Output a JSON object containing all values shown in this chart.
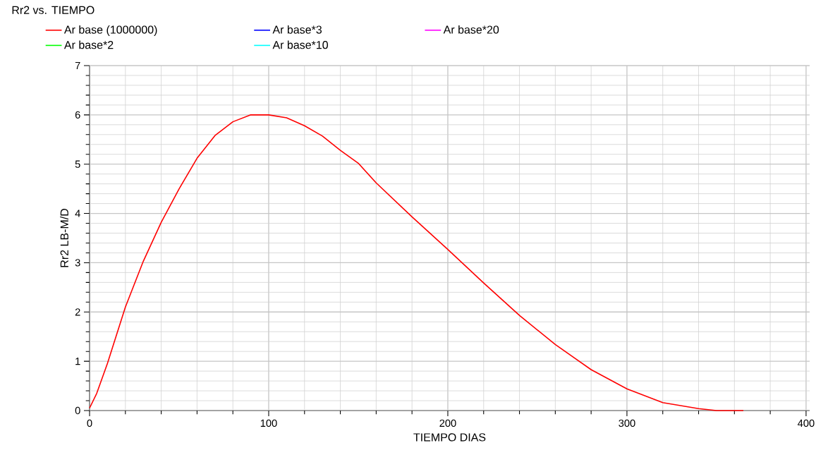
{
  "chart_data": {
    "type": "line",
    "title": "Rr2 vs. TIEMPO",
    "xlabel": "TIEMPO      DIAS",
    "ylabel": "Rr2  LB-M/D",
    "x": [
      0,
      4,
      10,
      20,
      30,
      40,
      50,
      60,
      70,
      80,
      90,
      100,
      110,
      120,
      130,
      140,
      150,
      160,
      180,
      200,
      220,
      240,
      260,
      280,
      300,
      320,
      340,
      350,
      365
    ],
    "series": [
      {
        "name": "Ar base (1000000)",
        "color": "#ff0000",
        "values": [
          0.05,
          0.35,
          0.96,
          2.1,
          3.03,
          3.82,
          4.5,
          5.12,
          5.58,
          5.86,
          6.0,
          6.0,
          5.94,
          5.78,
          5.57,
          5.28,
          5.02,
          4.62,
          3.93,
          3.27,
          2.59,
          1.93,
          1.34,
          0.83,
          0.44,
          0.16,
          0.04,
          0.0,
          0.0
        ]
      },
      {
        "name": "Ar base*2",
        "color": "#00ff00",
        "values": [
          null,
          null,
          null,
          null,
          null,
          null,
          null,
          null,
          null,
          null,
          null,
          null,
          null,
          null,
          null,
          null,
          null,
          null,
          null,
          null,
          null,
          null,
          null,
          null,
          null,
          null,
          null,
          null,
          null
        ]
      },
      {
        "name": "Ar base*3",
        "color": "#0000ff",
        "values": [
          null,
          null,
          null,
          null,
          null,
          null,
          null,
          null,
          null,
          null,
          null,
          null,
          null,
          null,
          null,
          null,
          null,
          null,
          null,
          null,
          null,
          null,
          null,
          null,
          null,
          null,
          null,
          null,
          null
        ]
      },
      {
        "name": "Ar base*10",
        "color": "#00ffff",
        "values": [
          null,
          null,
          null,
          null,
          null,
          null,
          null,
          null,
          null,
          null,
          null,
          null,
          null,
          null,
          null,
          null,
          null,
          null,
          null,
          null,
          null,
          null,
          null,
          null,
          null,
          null,
          null,
          null,
          null
        ]
      },
      {
        "name": "Ar base*20",
        "color": "#ff00ff",
        "values": [
          null,
          null,
          null,
          null,
          null,
          null,
          null,
          null,
          null,
          null,
          null,
          null,
          null,
          null,
          null,
          null,
          null,
          null,
          null,
          null,
          null,
          null,
          null,
          null,
          null,
          null,
          null,
          null,
          null
        ]
      }
    ],
    "xlim": [
      0,
      402
    ],
    "ylim": [
      0,
      7
    ],
    "xticks": [
      0,
      {
        "value": 20,
        "label": null
      },
      {
        "value": 40,
        "label": null
      },
      {
        "value": 60,
        "label": null
      },
      {
        "value": 80,
        "label": null
      },
      100,
      {
        "value": 120,
        "label": null
      },
      {
        "value": 140,
        "label": null
      },
      {
        "value": 160,
        "label": null
      },
      {
        "value": 180,
        "label": null
      },
      200,
      {
        "value": 220,
        "label": null
      },
      {
        "value": 240,
        "label": null
      },
      {
        "value": 260,
        "label": null
      },
      {
        "value": 280,
        "label": null
      },
      300,
      {
        "value": 320,
        "label": null
      },
      {
        "value": 340,
        "label": null
      },
      {
        "value": 360,
        "label": null
      },
      {
        "value": 380,
        "label": null
      },
      400
    ],
    "yticks": [
      0,
      {
        "value": 0.2,
        "label": null
      },
      {
        "value": 0.4,
        "label": null
      },
      {
        "value": 0.6,
        "label": null
      },
      {
        "value": 0.8,
        "label": null
      },
      1,
      {
        "value": 1.2,
        "label": null
      },
      {
        "value": 1.4,
        "label": null
      },
      {
        "value": 1.6,
        "label": null
      },
      {
        "value": 1.8,
        "label": null
      },
      2,
      {
        "value": 2.2,
        "label": null
      },
      {
        "value": 2.4,
        "label": null
      },
      {
        "value": 2.6,
        "label": null
      },
      {
        "value": 2.8,
        "label": null
      },
      3,
      {
        "value": 3.2,
        "label": null
      },
      {
        "value": 3.4,
        "label": null
      },
      {
        "value": 3.6,
        "label": null
      },
      {
        "value": 3.8,
        "label": null
      },
      4,
      {
        "value": 4.2,
        "label": null
      },
      {
        "value": 4.4,
        "label": null
      },
      {
        "value": 4.6,
        "label": null
      },
      {
        "value": 4.8,
        "label": null
      },
      5,
      {
        "value": 5.2,
        "label": null
      },
      {
        "value": 5.4,
        "label": null
      },
      {
        "value": 5.6,
        "label": null
      },
      {
        "value": 5.8,
        "label": null
      },
      6,
      {
        "value": 6.2,
        "label": null
      },
      {
        "value": 6.4,
        "label": null
      },
      {
        "value": 6.6,
        "label": null
      },
      {
        "value": 6.8,
        "label": null
      },
      7
    ],
    "grid": true,
    "legend": "top",
    "marker": "none",
    "line_style": "solid"
  }
}
